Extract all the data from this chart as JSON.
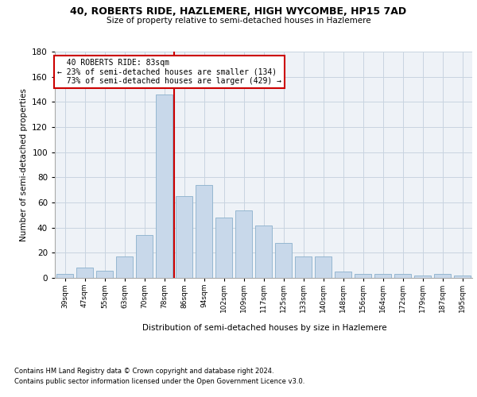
{
  "title": "40, ROBERTS RIDE, HAZLEMERE, HIGH WYCOMBE, HP15 7AD",
  "subtitle": "Size of property relative to semi-detached houses in Hazlemere",
  "xlabel": "Distribution of semi-detached houses by size in Hazlemere",
  "ylabel": "Number of semi-detached properties",
  "bar_labels": [
    "39sqm",
    "47sqm",
    "55sqm",
    "63sqm",
    "70sqm",
    "78sqm",
    "86sqm",
    "94sqm",
    "102sqm",
    "109sqm",
    "117sqm",
    "125sqm",
    "133sqm",
    "140sqm",
    "148sqm",
    "156sqm",
    "164sqm",
    "172sqm",
    "179sqm",
    "187sqm",
    "195sqm"
  ],
  "bar_heights": [
    3,
    8,
    6,
    17,
    34,
    146,
    65,
    74,
    48,
    54,
    42,
    28,
    17,
    17,
    5,
    3,
    3,
    3,
    2,
    3,
    2
  ],
  "property_label": "40 ROBERTS RIDE: 83sqm",
  "pct_smaller": 23,
  "pct_larger": 73,
  "n_smaller": 134,
  "n_larger": 429,
  "vline_pos": 5.5,
  "bar_color": "#c8d8ea",
  "bar_edge_color": "#8ab0cc",
  "vline_color": "#cc0000",
  "annotation_box_edge": "#cc0000",
  "grid_color": "#c8d4e0",
  "bg_color": "#eef2f7",
  "ylim": [
    0,
    180
  ],
  "yticks": [
    0,
    20,
    40,
    60,
    80,
    100,
    120,
    140,
    160,
    180
  ],
  "footnote1": "Contains HM Land Registry data © Crown copyright and database right 2024.",
  "footnote2": "Contains public sector information licensed under the Open Government Licence v3.0."
}
